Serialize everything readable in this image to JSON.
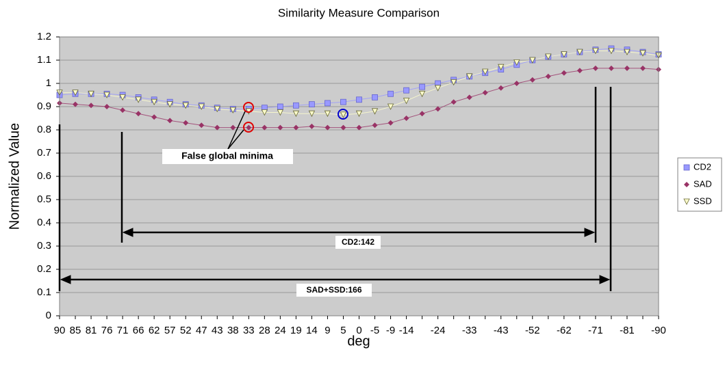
{
  "chart_data": {
    "type": "line",
    "title": "Similarity Measure Comparison",
    "x_label": "deg",
    "y_label": "Normalized Value",
    "categories": [
      "90",
      "85",
      "81",
      "76",
      "71",
      "66",
      "62",
      "57",
      "52",
      "47",
      "43",
      "38",
      "33",
      "28",
      "24",
      "19",
      "14",
      "9",
      "5",
      "0",
      "-5",
      "-9",
      "-14",
      null,
      "-24",
      null,
      "-33",
      null,
      "-43",
      null,
      "-52",
      null,
      "-62",
      null,
      "-71",
      null,
      "-81",
      null,
      "-90"
    ],
    "series": [
      {
        "name": "CD2",
        "color": "#9999ff",
        "marker": "square",
        "values": [
          0.95,
          0.955,
          0.955,
          0.955,
          0.95,
          0.94,
          0.93,
          0.92,
          0.91,
          0.905,
          0.895,
          0.89,
          0.89,
          0.895,
          0.9,
          0.905,
          0.91,
          0.915,
          0.92,
          0.93,
          0.94,
          0.955,
          0.97,
          0.985,
          1.0,
          1.015,
          1.03,
          1.045,
          1.06,
          1.08,
          1.1,
          1.115,
          1.125,
          1.135,
          1.145,
          1.15,
          1.145,
          1.135,
          1.125
        ]
      },
      {
        "name": "SAD",
        "color": "#993366",
        "marker": "diamond",
        "values": [
          0.915,
          0.91,
          0.905,
          0.9,
          0.885,
          0.87,
          0.855,
          0.84,
          0.83,
          0.82,
          0.81,
          0.81,
          0.81,
          0.81,
          0.81,
          0.81,
          0.815,
          0.81,
          0.81,
          0.81,
          0.82,
          0.83,
          0.85,
          0.87,
          0.89,
          0.92,
          0.94,
          0.96,
          0.98,
          1.0,
          1.015,
          1.03,
          1.045,
          1.055,
          1.065,
          1.065,
          1.065,
          1.065,
          1.06
        ]
      },
      {
        "name": "SSD",
        "color": "#ffffcc",
        "marker": "triangle",
        "values": [
          0.96,
          0.96,
          0.955,
          0.95,
          0.94,
          0.93,
          0.92,
          0.91,
          0.905,
          0.9,
          0.89,
          0.885,
          0.88,
          0.875,
          0.875,
          0.87,
          0.87,
          0.87,
          0.865,
          0.87,
          0.88,
          0.9,
          0.925,
          0.955,
          0.98,
          1.005,
          1.03,
          1.05,
          1.07,
          1.09,
          1.1,
          1.115,
          1.125,
          1.135,
          1.14,
          1.14,
          1.135,
          1.13,
          1.12
        ]
      }
    ],
    "ylim": [
      0,
      1.2
    ],
    "yticks": [
      0,
      0.1,
      0.2,
      0.3,
      0.4,
      0.5,
      0.6,
      0.7,
      0.8,
      0.9,
      1,
      1.1,
      1.2
    ],
    "grid": true,
    "legend": "right",
    "annotations": [
      "False global minima",
      "CD2:142",
      "SAD+SSD:166"
    ]
  }
}
